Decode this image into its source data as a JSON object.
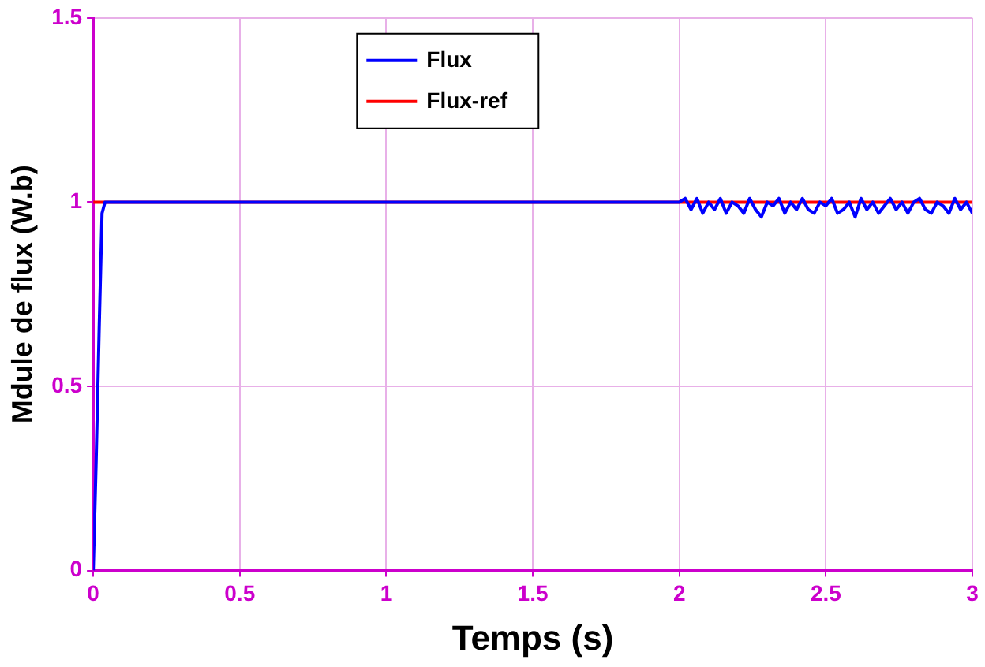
{
  "chart_data": {
    "type": "line",
    "xlabel": "Temps (s)",
    "ylabel": "Mdule de flux (W.b)",
    "xlim": [
      0,
      3
    ],
    "ylim": [
      0,
      1.5
    ],
    "xticks": [
      0,
      0.5,
      1,
      1.5,
      2,
      2.5,
      3
    ],
    "yticks": [
      0,
      0.5,
      1,
      1.5
    ],
    "grid": true,
    "legend": "top",
    "marker": "none",
    "line_style": "solid",
    "series": [
      {
        "name": "Flux",
        "color": "#0000ff",
        "x": [
          0,
          0.01,
          0.02,
          0.03,
          0.04,
          0.5,
          1,
          1.5,
          2.0,
          2.02,
          2.04,
          2.06,
          2.08,
          2.1,
          2.12,
          2.14,
          2.16,
          2.18,
          2.2,
          2.22,
          2.24,
          2.26,
          2.28,
          2.3,
          2.32,
          2.34,
          2.36,
          2.38,
          2.4,
          2.42,
          2.44,
          2.46,
          2.48,
          2.5,
          2.52,
          2.54,
          2.56,
          2.58,
          2.6,
          2.62,
          2.64,
          2.66,
          2.68,
          2.7,
          2.72,
          2.74,
          2.76,
          2.78,
          2.8,
          2.82,
          2.84,
          2.86,
          2.88,
          2.9,
          2.92,
          2.94,
          2.96,
          2.98,
          3.0
        ],
        "values": [
          0,
          0.3,
          0.65,
          0.97,
          1,
          1,
          1,
          1,
          1,
          1.01,
          0.98,
          1.01,
          0.97,
          1.0,
          0.98,
          1.01,
          0.97,
          1.0,
          0.99,
          0.97,
          1.01,
          0.98,
          0.96,
          1.0,
          0.99,
          1.01,
          0.97,
          1.0,
          0.98,
          1.01,
          0.98,
          0.97,
          1.0,
          0.99,
          1.01,
          0.97,
          0.98,
          1.0,
          0.96,
          1.01,
          0.98,
          1.0,
          0.97,
          0.99,
          1.01,
          0.98,
          1.0,
          0.97,
          1.0,
          1.01,
          0.98,
          0.97,
          1.0,
          0.99,
          0.97,
          1.01,
          0.98,
          1.0,
          0.97
        ]
      },
      {
        "name": "Flux-ref",
        "color": "#ff0000",
        "x": [
          0,
          3
        ],
        "values": [
          1,
          1
        ]
      }
    ]
  }
}
